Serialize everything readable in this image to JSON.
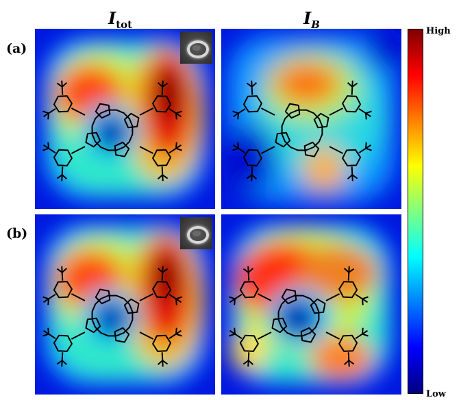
{
  "columns": {
    "left_title_main": "I",
    "left_title_sub": "tot",
    "right_title_main": "I",
    "right_title_sub": "B"
  },
  "rows": [
    {
      "label": "(a)"
    },
    {
      "label": "(b)"
    }
  ],
  "colorbar": {
    "high_label": "High",
    "low_label": "Low",
    "colormap": [
      "#800000",
      "#ff0000",
      "#ff8000",
      "#ffff00",
      "#80ff80",
      "#00ffff",
      "#0080ff",
      "#0000ff",
      "#000080"
    ]
  },
  "panels": [
    {
      "name": "a-total",
      "has_stm_inset": true
    },
    {
      "name": "a-b",
      "has_stm_inset": false
    },
    {
      "name": "b-total",
      "has_stm_inset": true
    },
    {
      "name": "b-b",
      "has_stm_inset": false
    }
  ]
}
